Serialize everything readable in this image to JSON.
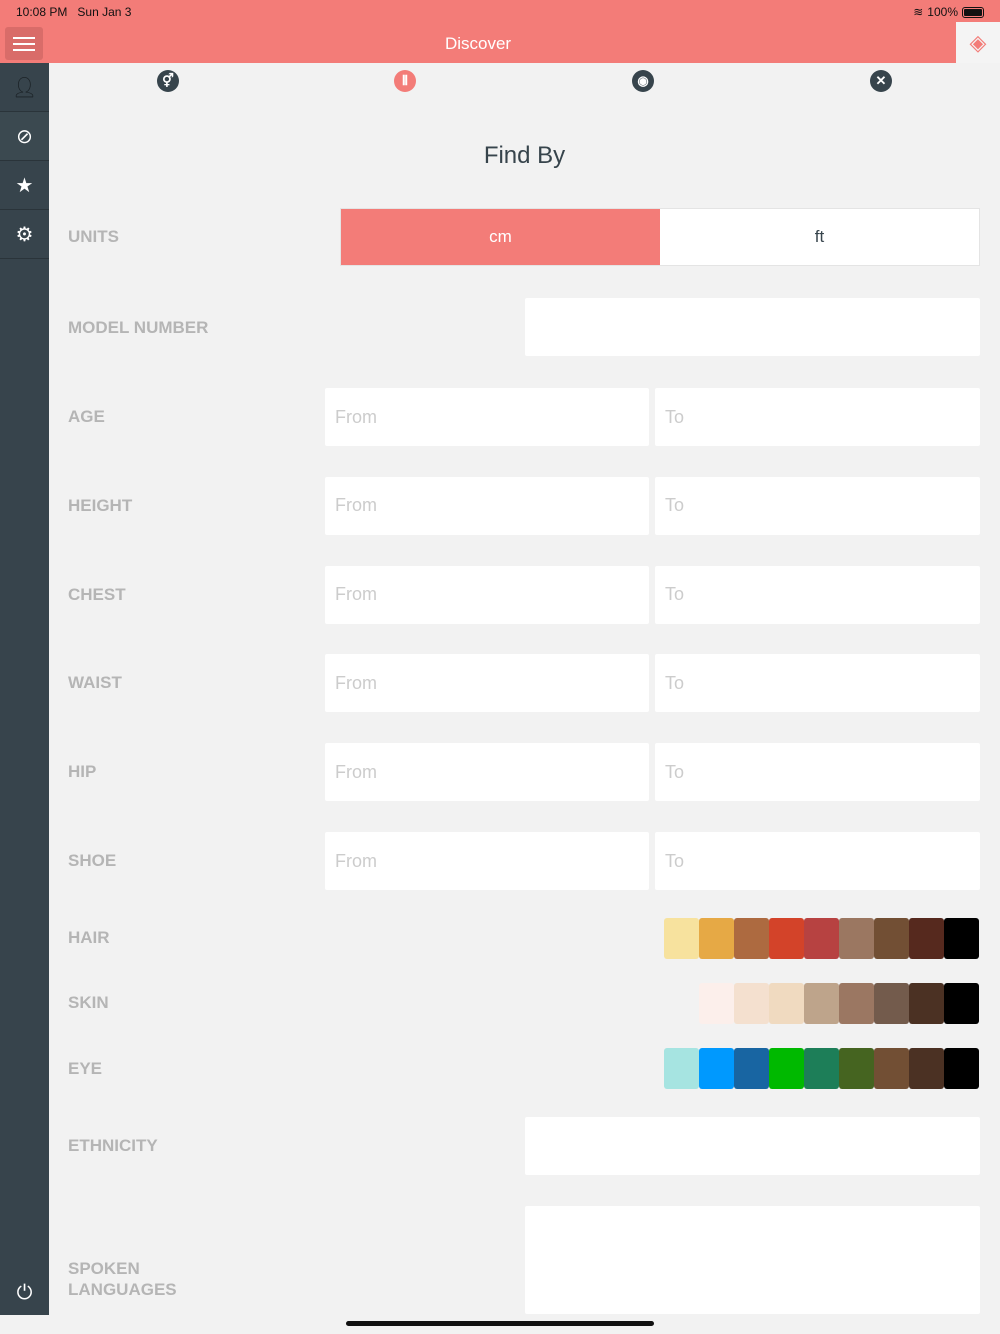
{
  "status": {
    "time": "10:08 PM",
    "date": "Sun Jan 3",
    "battery": "100%"
  },
  "nav": {
    "title": "Discover"
  },
  "tabs": [
    "gender-icon",
    "filter-icon",
    "globe-icon",
    "close-icon"
  ],
  "heading": "Find By",
  "units": {
    "label": "UNITS",
    "options": [
      "cm",
      "ft"
    ],
    "selected": "cm"
  },
  "model": {
    "label": "MODEL NUMBER",
    "value": ""
  },
  "ranges": [
    {
      "label": "AGE",
      "from": "From",
      "to": "To"
    },
    {
      "label": "HEIGHT",
      "from": "From",
      "to": "To"
    },
    {
      "label": "CHEST",
      "from": "From",
      "to": "To"
    },
    {
      "label": "WAIST",
      "from": "From",
      "to": "To"
    },
    {
      "label": "HIP",
      "from": "From",
      "to": "To"
    },
    {
      "label": "SHOE",
      "from": "From",
      "to": "To"
    }
  ],
  "hair": {
    "label": "HAIR",
    "colors": [
      "#f7e29e",
      "#e6a945",
      "#ad6a40",
      "#d34329",
      "#b74241",
      "#9b7761",
      "#724f34",
      "#56291e",
      "#000000"
    ]
  },
  "skin": {
    "label": "SKIN",
    "colors": [
      "#fcefeb",
      "#f4e0cf",
      "#f0dac0",
      "#bea48b",
      "#9b7762",
      "#735b4c",
      "#4b3123",
      "#000000"
    ]
  },
  "eye": {
    "label": "EYE",
    "colors": [
      "#a6e4e1",
      "#0099fe",
      "#1865a2",
      "#00b900",
      "#1d7e58",
      "#456420",
      "#724f34",
      "#4b3123",
      "#000000"
    ]
  },
  "ethnicity": {
    "label": "ETHNICITY",
    "value": ""
  },
  "languages": {
    "label_1": "SPOKEN",
    "label_2": "LANGUAGES",
    "value": ""
  }
}
